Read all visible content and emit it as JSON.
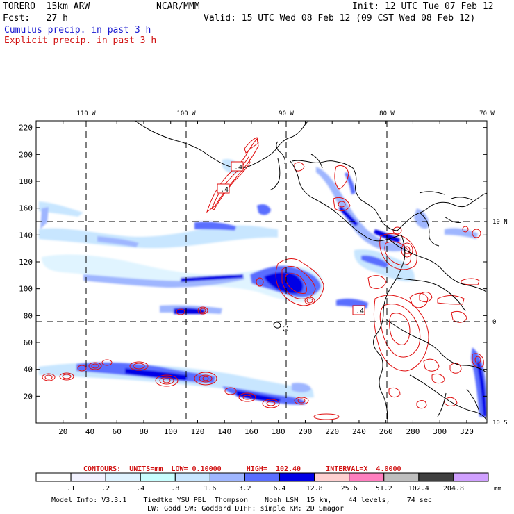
{
  "header": {
    "model": "TORERO  15km ARW",
    "org": "NCAR/MMM",
    "init": "Init: 12 UTC Tue 07 Feb 12",
    "fcst_label": "Fcst:   27 h",
    "valid": "Valid: 15 UTC Wed 08 Feb 12 (09 CST Wed 08 Feb 12)",
    "cumulus_title": "Cumulus precip. in past 3 h",
    "explicit_title": "Explicit precip. in past 3 h"
  },
  "chart_data": {
    "type": "heatmap",
    "title": "Cumulus / Explicit precip. in past 3 h",
    "x_ticks": [
      "20",
      "40",
      "60",
      "80",
      "100",
      "120",
      "140",
      "160",
      "180",
      "200",
      "220",
      "240",
      "260",
      "280",
      "300",
      "320"
    ],
    "y_ticks": [
      "20",
      "40",
      "60",
      "80",
      "100",
      "120",
      "140",
      "160",
      "180",
      "200",
      "220"
    ],
    "xlim": [
      0,
      335
    ],
    "ylim": [
      0,
      225
    ],
    "lon_labels": [
      "110 W",
      "100 W",
      "90 W",
      "80 W",
      "70 W"
    ],
    "lat_labels": [
      "10 N",
      "0",
      "10 S"
    ],
    "contour_labels": [
      ".4",
      ".4",
      ".4"
    ],
    "contours": {
      "text": "CONTOURS:  UNITS=mm  LOW= 0.10000      HIGH=  102.40      INTERVAL=X  4.0000",
      "units": "mm",
      "low": 0.1,
      "high": 102.4,
      "interval_factor": 4.0
    },
    "colorbar": {
      "levels": [
        ".1",
        ".2",
        ".4",
        ".8",
        "1.6",
        "3.2",
        "6.4",
        "12.8",
        "25.6",
        "51.2",
        "102.4",
        "204.8"
      ],
      "unit": "mm",
      "colors": [
        "#ffffff",
        "#f2f2ff",
        "#e0f4ff",
        "#c8ffff",
        "#c8e6ff",
        "#9fb6ff",
        "#5a6eff",
        "#0000e6",
        "#ffd0d0",
        "#ff7fbf",
        "#bebebe",
        "#404040",
        "#d0a0ff"
      ]
    }
  },
  "footer": {
    "line1": "Model Info: V3.3.1    Tiedtke YSU PBL  Thompson    Noah LSM  15 km,    44 levels,    74 sec",
    "line2": "LW: Godd SW: Goddard DIFF: simple KM: 2D Smagor"
  }
}
